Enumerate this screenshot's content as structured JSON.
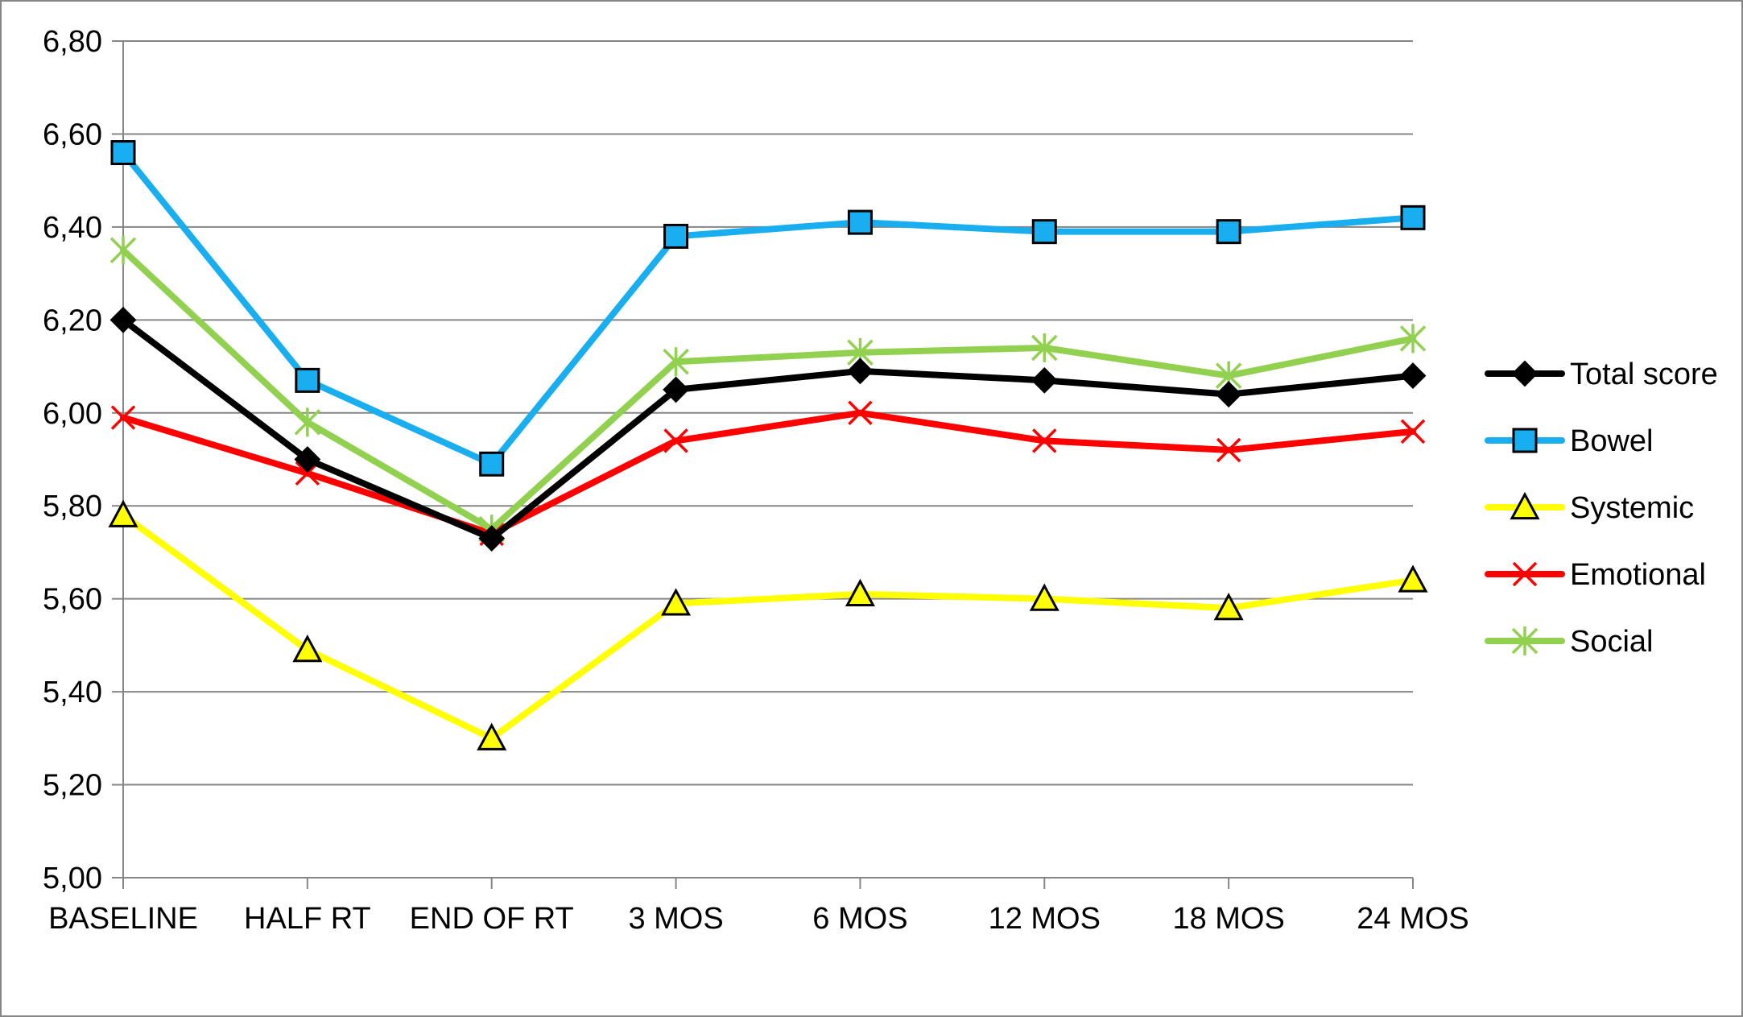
{
  "chart_data": {
    "type": "line",
    "title": "",
    "xlabel": "",
    "ylabel": "",
    "categories": [
      "BASELINE",
      "HALF RT",
      "END OF RT",
      "3 MOS",
      "6 MOS",
      "12 MOS",
      "18 MOS",
      "24 MOS"
    ],
    "ylim": [
      5.0,
      6.8
    ],
    "yticks": [
      "5,00",
      "5,20",
      "5,40",
      "5,60",
      "5,80",
      "6,00",
      "6,20",
      "6,40",
      "6,60",
      "6,80"
    ],
    "ytick_values": [
      5.0,
      5.2,
      5.4,
      5.6,
      5.8,
      6.0,
      6.2,
      6.4,
      6.6,
      6.8
    ],
    "grid": "horizontal",
    "legend_position": "right",
    "series": [
      {
        "name": "Total score",
        "color": "#000000",
        "marker": "diamond",
        "values": [
          6.2,
          5.9,
          5.73,
          6.05,
          6.09,
          6.07,
          6.04,
          6.08
        ]
      },
      {
        "name": "Bowel",
        "color": "#19AEEF",
        "marker": "square",
        "values": [
          6.56,
          6.07,
          5.89,
          6.38,
          6.41,
          6.39,
          6.39,
          6.42
        ]
      },
      {
        "name": "Systemic",
        "color": "#FFFF00",
        "marker": "triangle",
        "values": [
          5.78,
          5.49,
          5.3,
          5.59,
          5.61,
          5.6,
          5.58,
          5.64
        ]
      },
      {
        "name": "Emotional",
        "color": "#FF0000",
        "marker": "x",
        "values": [
          5.99,
          5.87,
          5.74,
          5.94,
          6.0,
          5.94,
          5.92,
          5.96
        ]
      },
      {
        "name": "Social",
        "color": "#92D050",
        "marker": "star",
        "values": [
          6.35,
          5.98,
          5.75,
          6.11,
          6.13,
          6.14,
          6.08,
          6.16
        ]
      }
    ]
  }
}
